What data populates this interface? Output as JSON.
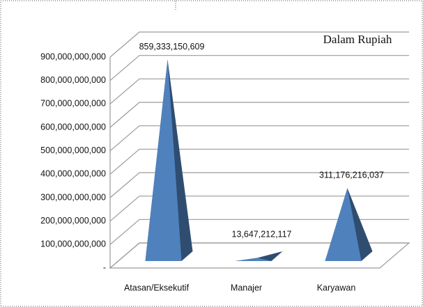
{
  "chart_data": {
    "type": "pyramid3d",
    "annotation": "Dalam Rupiah",
    "categories": [
      "Atasan/Eksekutif",
      "Manajer",
      "Karyawan"
    ],
    "values": [
      859333150609,
      13647212117,
      311176216037
    ],
    "value_labels": [
      "859,333,150,609",
      "13,647,212,117",
      "311,176,216,037"
    ],
    "color": "#4f81bd",
    "ylim": [
      0,
      900000000000
    ],
    "yticks": [
      {
        "value": 0,
        "label": "-"
      },
      {
        "value": 100000000000,
        "label": "100,000,000,000"
      },
      {
        "value": 200000000000,
        "label": "200,000,000,000"
      },
      {
        "value": 300000000000,
        "label": "300,000,000,000"
      },
      {
        "value": 400000000000,
        "label": "400,000,000,000"
      },
      {
        "value": 500000000000,
        "label": "500,000,000,000"
      },
      {
        "value": 600000000000,
        "label": "600,000,000,000"
      },
      {
        "value": 700000000000,
        "label": "700,000,000,000"
      },
      {
        "value": 800000000000,
        "label": "800,000,000,000"
      },
      {
        "value": 900000000000,
        "label": "900,000,000,000"
      }
    ],
    "grid": true
  }
}
